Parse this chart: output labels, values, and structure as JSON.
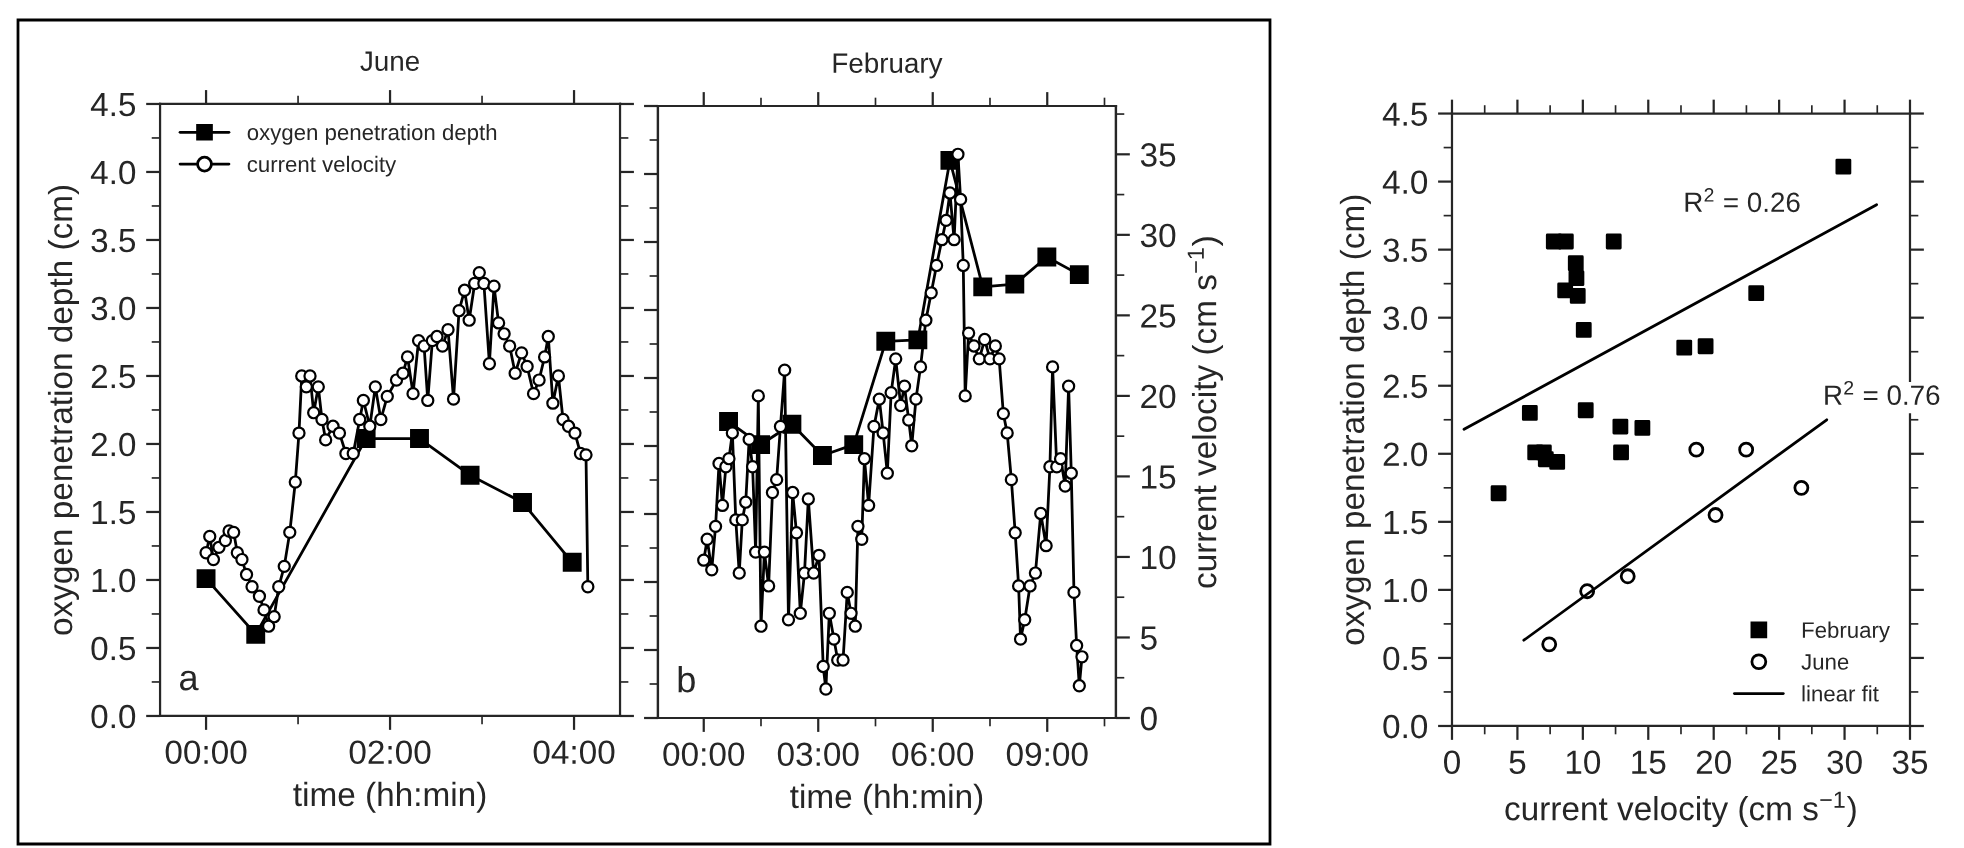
{
  "chart_data": [
    {
      "type": "line",
      "title": "June",
      "xlabel": "time (hh:min)",
      "ylabel": "oxygen penetration depth (cm)",
      "xlim": [
        -0.5,
        4.5
      ],
      "xticks": [
        {
          "value": 0,
          "label": "00:00"
        },
        {
          "value": 2,
          "label": "02:00"
        },
        {
          "value": 4,
          "label": "04:00"
        }
      ],
      "ylim": [
        0,
        4.5
      ],
      "yticks": [
        {
          "value": 0,
          "label": "0.0"
        },
        0.5,
        {
          "value": 1,
          "label": "1.0"
        },
        1.5,
        {
          "value": 2,
          "label": "2.0"
        },
        2.5,
        {
          "value": 3,
          "label": "3.0"
        },
        3.5,
        {
          "value": 4,
          "label": "4.0"
        },
        4.5
      ],
      "tick_labels": [
        "x",
        "y"
      ],
      "legend": "top left",
      "annotations": [
        "a"
      ],
      "series": [
        {
          "name": "oxygen penetration depth",
          "color": "#000000",
          "marker": "square",
          "x": [
            0,
            0.54,
            1.74,
            2.32,
            2.87,
            3.44,
            3.98
          ],
          "values": [
            1.01,
            0.6,
            2.04,
            2.04,
            1.77,
            1.57,
            1.13
          ]
        },
        {
          "name": "current velocity",
          "color": "#000000",
          "marker": "circle",
          "x": [
            0,
            0.04,
            0.08,
            0.14,
            0.21,
            0.25,
            0.3,
            0.34,
            0.39,
            0.44,
            0.5,
            0.58,
            0.63,
            0.68,
            0.74,
            0.79,
            0.85,
            0.91,
            0.97,
            1.01,
            1.04,
            1.09,
            1.13,
            1.17,
            1.22,
            1.26,
            1.3,
            1.38,
            1.45,
            1.52,
            1.6,
            1.67,
            1.71,
            1.78,
            1.84,
            1.9,
            1.97,
            2.07,
            2.14,
            2.19,
            2.25,
            2.31,
            2.37,
            2.41,
            2.46,
            2.51,
            2.57,
            2.63,
            2.69,
            2.75,
            2.81,
            2.86,
            2.92,
            2.97,
            3.02,
            3.08,
            3.13,
            3.18,
            3.24,
            3.3,
            3.36,
            3.43,
            3.49,
            3.56,
            3.62,
            3.68,
            3.72,
            3.77,
            3.83,
            3.88,
            3.94,
            4.01,
            4.07,
            4.13,
            4.15
          ],
          "values": [
            1.2,
            1.32,
            1.15,
            1.24,
            1.29,
            1.36,
            1.35,
            1.2,
            1.15,
            1.04,
            0.95,
            0.88,
            0.78,
            0.66,
            0.73,
            0.95,
            1.1,
            1.35,
            1.72,
            2.08,
            2.5,
            2.42,
            2.5,
            2.23,
            2.42,
            2.18,
            2.03,
            2.13,
            2.08,
            1.93,
            1.93,
            2.18,
            2.32,
            2.13,
            2.42,
            2.18,
            2.35,
            2.47,
            2.52,
            2.64,
            2.37,
            2.76,
            2.72,
            2.32,
            2.76,
            2.79,
            2.72,
            2.84,
            2.33,
            2.98,
            3.13,
            2.91,
            3.18,
            3.26,
            3.18,
            2.59,
            3.16,
            2.89,
            2.81,
            2.72,
            2.52,
            2.67,
            2.57,
            2.37,
            2.47,
            2.64,
            2.79,
            2.3,
            2.5,
            2.18,
            2.13,
            2.08,
            1.93,
            1.92,
            0.95
          ]
        }
      ]
    },
    {
      "type": "line",
      "title": "February",
      "xlabel": "time (hh:min)",
      "y2label": "current velocity (cm s$^{−1}$)",
      "xlim": [
        -1.2,
        10.8
      ],
      "xticks": [
        {
          "value": 0,
          "label": "00:00"
        },
        {
          "value": 3,
          "label": "03:00"
        },
        {
          "value": 6,
          "label": "06:00"
        },
        {
          "value": 9,
          "label": "09:00"
        }
      ],
      "ylim": [
        0,
        4.5
      ],
      "y2lim": [
        0,
        38
      ],
      "y2ticks": [
        0,
        5,
        10,
        15,
        20,
        25,
        30,
        35
      ],
      "tick_labels": [
        "x",
        "y2"
      ],
      "annotations": [
        "b"
      ],
      "series": [
        {
          "color": "#000000",
          "marker": "square",
          "x": [
            0.65,
            1.49,
            2.31,
            3.11,
            3.93,
            4.77,
            5.61,
            6.45,
            7.31,
            8.15,
            8.99,
            9.84
          ],
          "values": [
            2.18,
            2.01,
            2.16,
            1.93,
            2.01,
            2.77,
            2.78,
            4.1,
            3.17,
            3.19,
            3.39,
            3.26
          ]
        },
        {
          "color": "#000000",
          "marker": "circle",
          "axis": "y2",
          "x": [
            0,
            0.09,
            0.21,
            0.31,
            0.4,
            0.49,
            0.58,
            0.66,
            0.75,
            0.84,
            0.93,
            1.01,
            1.1,
            1.19,
            1.28,
            1.36,
            1.43,
            1.5,
            1.59,
            1.7,
            1.8,
            1.91,
            2.01,
            2.12,
            2.22,
            2.33,
            2.43,
            2.53,
            2.64,
            2.74,
            2.88,
            3.02,
            3.13,
            3.2,
            3.29,
            3.41,
            3.51,
            3.65,
            3.76,
            3.86,
            3.97,
            4.04,
            4.14,
            4.21,
            4.32,
            4.46,
            4.6,
            4.7,
            4.81,
            4.91,
            5.03,
            5.16,
            5.26,
            5.37,
            5.45,
            5.56,
            5.68,
            5.82,
            5.96,
            6.1,
            6.24,
            6.35,
            6.45,
            6.56,
            6.66,
            6.73,
            6.8,
            6.85,
            6.94,
            7.08,
            7.22,
            7.36,
            7.5,
            7.64,
            7.74,
            7.85,
            7.95,
            8.06,
            8.16,
            8.25,
            8.3,
            8.41,
            8.55,
            8.69,
            8.83,
            8.97,
            9.07,
            9.14,
            9.25,
            9.35,
            9.47,
            9.56,
            9.63,
            9.7,
            9.77,
            9.84,
            9.91
          ],
          "values": [
            9.8,
            11.1,
            9.2,
            11.9,
            15.8,
            13.2,
            15.6,
            16.1,
            17.7,
            12.3,
            9,
            12.3,
            13.4,
            17.3,
            15.6,
            10.3,
            20,
            5.7,
            10.3,
            8.2,
            14,
            14.8,
            18.1,
            21.6,
            6.1,
            14,
            11.5,
            6.5,
            9,
            13.6,
            9,
            10.1,
            3.2,
            1.8,
            6.5,
            4.9,
            3.6,
            3.6,
            7.8,
            6.5,
            5.7,
            11.9,
            11.1,
            16.1,
            13.2,
            18.1,
            19.8,
            17.7,
            15.2,
            20.2,
            22.3,
            19.4,
            20.6,
            18.5,
            16.9,
            19.8,
            21.8,
            24.7,
            26.4,
            28.1,
            29.7,
            30.9,
            32.6,
            29.7,
            35,
            32.2,
            28.1,
            20,
            23.9,
            23.1,
            22.3,
            23.5,
            22.3,
            23.1,
            22.3,
            18.9,
            17.7,
            14.8,
            11.5,
            8.2,
            4.9,
            6.1,
            8.2,
            9,
            12.7,
            10.7,
            15.6,
            21.8,
            15.6,
            16.1,
            14.4,
            20.6,
            15.2,
            7.8,
            4.5,
            2,
            3.8
          ]
        }
      ]
    },
    {
      "type": "scatter",
      "xlabel": "current velocity (cm s$^{−1}$)",
      "ylabel": "oxygen penetration depth (cm)",
      "xlim": [
        0,
        35
      ],
      "xticks": [
        0,
        5,
        10,
        15,
        20,
        25,
        30,
        35
      ],
      "ylim": [
        0,
        4.5
      ],
      "yticks": [
        {
          "value": 0,
          "label": "0.0"
        },
        0.5,
        {
          "value": 1,
          "label": "1.0"
        },
        1.5,
        {
          "value": 2,
          "label": "2.0"
        },
        2.5,
        {
          "value": 3,
          "label": "3.0"
        },
        3.5,
        {
          "value": 4,
          "label": "4.0"
        },
        4.5
      ],
      "legend": "bottom right",
      "annotations": [
        "R$^{2}$ = 0.26",
        "R$^{2}$ = 0.76"
      ],
      "series": [
        {
          "name": "February",
          "color": "#000000",
          "marker": "square",
          "x": [
            3.56,
            5.95,
            6.36,
            7.02,
            7.17,
            7.78,
            8.04,
            8.65,
            8.7,
            9.46,
            9.51,
            9.61,
            10.07,
            10.22,
            12.36,
            12.87,
            12.92,
            14.55,
            17.75,
            19.38,
            23.25,
            29.91
          ],
          "values": [
            1.71,
            2.3,
            2.01,
            2.01,
            1.96,
            3.56,
            1.94,
            3.2,
            3.56,
            3.4,
            3.29,
            3.16,
            2.91,
            2.32,
            3.56,
            2.2,
            2.01,
            2.19,
            2.78,
            2.79,
            3.18,
            4.11
          ]
        },
        {
          "name": "June",
          "color": "#000000",
          "marker": "circle",
          "x": [
            7.43,
            10.33,
            13.43,
            18.67,
            20.14,
            22.48,
            26.7
          ],
          "values": [
            0.6,
            0.99,
            1.1,
            2.03,
            1.55,
            2.03,
            1.75
          ]
        },
        {
          "name": "linear fit",
          "type": "line",
          "color": "#000000",
          "x": [
            0.92,
            32.45
          ],
          "values": [
            2.18,
            3.83
          ]
        },
        {
          "type": "line",
          "color": "#000000",
          "x": [
            5.49,
            28.64
          ],
          "values": [
            0.63,
            2.25
          ]
        }
      ]
    }
  ]
}
